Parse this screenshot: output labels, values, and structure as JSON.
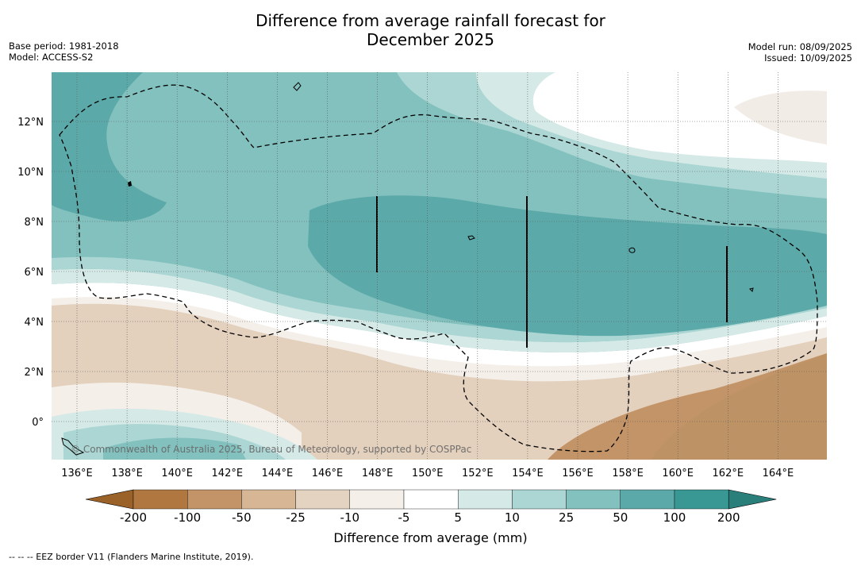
{
  "title_line1": "Difference from average rainfall forecast for",
  "title_line2": "December 2025",
  "base_period": "Base period: 1981-2018",
  "model": "Model: ACCESS-S2",
  "model_run": "Model run: 08/09/2025",
  "issued": "Issued: 10/09/2025",
  "copyright": "© Commonwealth of Australia 2025, Bureau of Meteorology, supported by COSPPac",
  "lon_labels": [
    "136°E",
    "138°E",
    "140°E",
    "142°E",
    "144°E",
    "146°E",
    "148°E",
    "150°E",
    "152°E",
    "154°E",
    "156°E",
    "158°E",
    "160°E",
    "162°E",
    "164°E"
  ],
  "lat_labels": [
    "12°N",
    "10°N",
    "8°N",
    "6°N",
    "4°N",
    "2°N",
    "0°"
  ],
  "colorbar": {
    "title": "Difference from average (mm)",
    "ticks": [
      "-200",
      "-100",
      "-50",
      "-25",
      "-10",
      "-5",
      "5",
      "10",
      "25",
      "50",
      "100",
      "200"
    ],
    "colors": [
      "#9a6228",
      "#b07840",
      "#c29468",
      "#d6b694",
      "#e5d3c1",
      "#f4efe9",
      "#ffffff",
      "#d5e9e7",
      "#abd6d4",
      "#83c1bf",
      "#5ca9a9",
      "#3a9894",
      "#2a7f7b"
    ]
  },
  "footer": "--  --  -- EEZ border V11 (Flanders Marine Institute, 2019)."
}
